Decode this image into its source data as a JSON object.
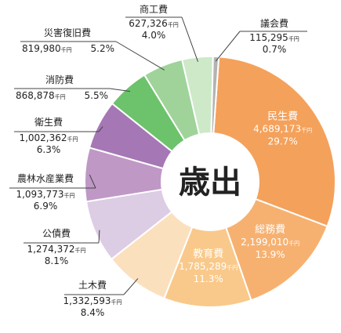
{
  "chart_data": {
    "type": "pie",
    "center_label": "歳出",
    "unit_label": "千円",
    "slices": [
      {
        "name": "民生費",
        "value": 4689173,
        "value_text": "4,689,173",
        "percent": "29.7%",
        "color": "#f4a15b"
      },
      {
        "name": "総務費",
        "value": 2199010,
        "value_text": "2,199,010",
        "percent": "13.9%",
        "color": "#f6b171"
      },
      {
        "name": "教育費",
        "value": 1785289,
        "value_text": "1,785,289",
        "percent": "11.3%",
        "color": "#f9c98b"
      },
      {
        "name": "土木費",
        "value": 1332593,
        "value_text": "1,332,593",
        "percent": "8.4%",
        "color": "#fbe0be"
      },
      {
        "name": "公債費",
        "value": 1274372,
        "value_text": "1,274,372",
        "percent": "8.1%",
        "color": "#dccce4"
      },
      {
        "name": "農林水産業費",
        "value": 1093773,
        "value_text": "1,093,773",
        "percent": "6.9%",
        "color": "#bf98c6"
      },
      {
        "name": "衛生費",
        "value": 1002362,
        "value_text": "1,002,362",
        "percent": "6.3%",
        "color": "#a577b4"
      },
      {
        "name": "消防費",
        "value": 868878,
        "value_text": "868,878",
        "percent": "5.5%",
        "color": "#6dc26c"
      },
      {
        "name": "災害復旧費",
        "value": 819980,
        "value_text": "819,980",
        "percent": "5.2%",
        "color": "#9fd39a"
      },
      {
        "name": "商工費",
        "value": 627326,
        "value_text": "627,326",
        "percent": "4.0%",
        "color": "#cde9c8"
      },
      {
        "name": "議会費",
        "value": 115295,
        "value_text": "115,295",
        "percent": "0.7%",
        "color": "#b3b3b3"
      }
    ]
  }
}
